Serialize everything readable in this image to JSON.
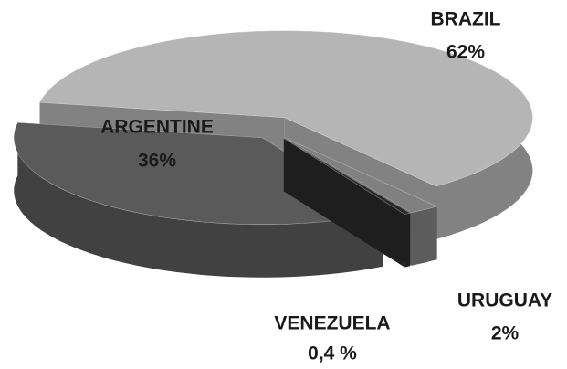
{
  "chart_data": {
    "type": "pie3d",
    "categories": [
      "BRAZIL",
      "URUGUAY",
      "VENEZUELA",
      "ARGENTINE"
    ],
    "values": [
      62,
      2,
      0.4,
      36
    ],
    "value_labels": [
      "62%",
      "2%",
      "0,4 %",
      "36%"
    ],
    "colors": [
      "#b5b5b5",
      "#808080",
      "#2a2a2a",
      "#5a5a5a"
    ]
  }
}
